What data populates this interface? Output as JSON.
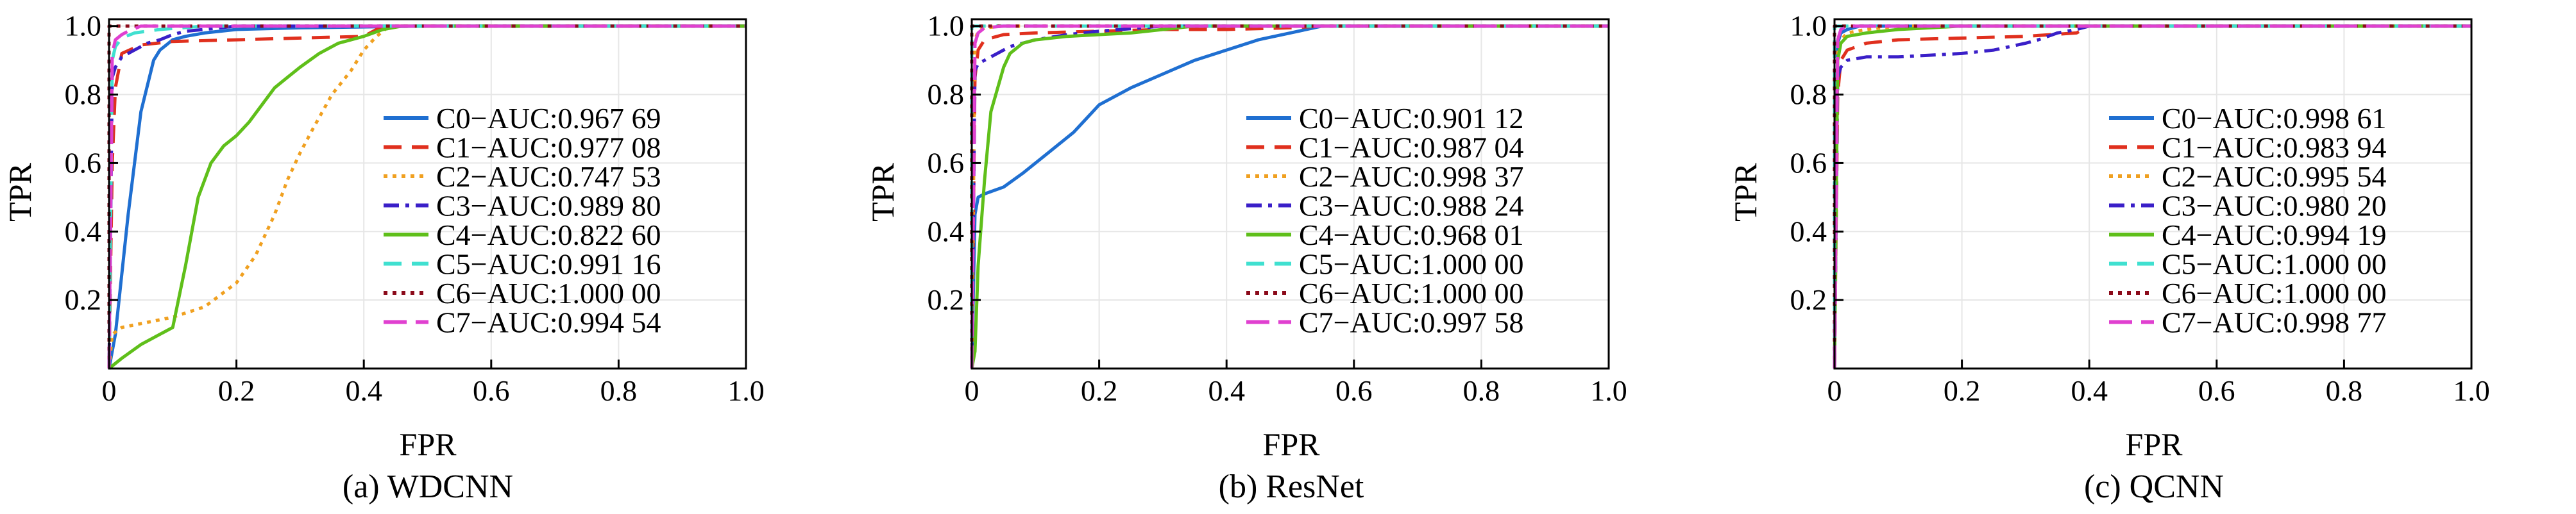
{
  "panels": [
    {
      "caption": "(a) WDCNN",
      "chart_data": {
        "type": "line",
        "xlabel": "FPR",
        "ylabel": "TPR",
        "xlim": [
          0,
          1.0
        ],
        "ylim": [
          0,
          1.02
        ],
        "xticks": [
          "0",
          "0.2",
          "0.4",
          "0.6",
          "0.8",
          "1.0"
        ],
        "yticks": [
          "0.2",
          "0.4",
          "0.6",
          "0.8",
          "1.0"
        ],
        "grid": true,
        "legend_position": "right",
        "series": [
          {
            "name": "C0−AUC:0.967 69",
            "color": "#1f6fd1",
            "dash": "solid",
            "x": [
              0,
              0.01,
              0.03,
              0.05,
              0.07,
              0.08,
              0.1,
              0.12,
              0.15,
              0.2,
              0.3,
              0.5,
              0.7,
              1.0
            ],
            "y": [
              0,
              0.1,
              0.45,
              0.75,
              0.9,
              0.93,
              0.96,
              0.97,
              0.98,
              0.99,
              0.995,
              1.0,
              1.0,
              1.0
            ]
          },
          {
            "name": "C1−AUC:0.977 08",
            "color": "#e0301e",
            "dash": "dashed",
            "x": [
              0,
              0.005,
              0.01,
              0.02,
              0.05,
              0.1,
              0.2,
              0.3,
              0.4,
              0.42,
              0.45,
              1.0
            ],
            "y": [
              0,
              0.6,
              0.82,
              0.92,
              0.945,
              0.955,
              0.96,
              0.965,
              0.97,
              0.99,
              1.0,
              1.0
            ]
          },
          {
            "name": "C2−AUC:0.747 53",
            "color": "#f0a020",
            "dash": "dotted",
            "x": [
              0,
              0.005,
              0.02,
              0.1,
              0.15,
              0.2,
              0.23,
              0.26,
              0.28,
              0.3,
              0.32,
              0.35,
              0.38,
              0.4,
              0.42,
              0.44,
              1.0
            ],
            "y": [
              0,
              0.1,
              0.12,
              0.15,
              0.18,
              0.25,
              0.33,
              0.45,
              0.55,
              0.63,
              0.7,
              0.8,
              0.87,
              0.93,
              0.97,
              1.0,
              1.0
            ]
          },
          {
            "name": "C3−AUC:0.989 80",
            "color": "#3a1fc8",
            "dash": "dashdot",
            "x": [
              0,
              0.005,
              0.01,
              0.02,
              0.04,
              0.06,
              0.08,
              0.1,
              0.12,
              0.15,
              0.2,
              1.0
            ],
            "y": [
              0,
              0.85,
              0.88,
              0.91,
              0.93,
              0.95,
              0.96,
              0.975,
              0.985,
              0.99,
              1.0,
              1.0
            ]
          },
          {
            "name": "C4−AUC:0.822 60",
            "color": "#5fbf1a",
            "dash": "solid",
            "x": [
              0,
              0.02,
              0.05,
              0.08,
              0.1,
              0.12,
              0.14,
              0.16,
              0.18,
              0.2,
              0.22,
              0.24,
              0.26,
              0.28,
              0.3,
              0.33,
              0.36,
              0.4,
              0.43,
              0.46,
              1.0
            ],
            "y": [
              0,
              0.03,
              0.07,
              0.1,
              0.12,
              0.3,
              0.5,
              0.6,
              0.65,
              0.68,
              0.72,
              0.77,
              0.82,
              0.85,
              0.88,
              0.92,
              0.95,
              0.97,
              0.99,
              1.0,
              1.0
            ]
          },
          {
            "name": "C5−AUC:0.991 16",
            "color": "#40e0d0",
            "dash": "dashed",
            "x": [
              0,
              0.005,
              0.01,
              0.02,
              0.04,
              0.08,
              0.15,
              1.0
            ],
            "y": [
              0,
              0.9,
              0.94,
              0.965,
              0.98,
              0.99,
              1.0,
              1.0
            ]
          },
          {
            "name": "C6−AUC:1.000 00",
            "color": "#8b0a1a",
            "dash": "dotted",
            "x": [
              0,
              0,
              1.0
            ],
            "y": [
              0,
              1.0,
              1.0
            ]
          },
          {
            "name": "C7−AUC:0.994 54",
            "color": "#e040d0",
            "dash": "longdash",
            "x": [
              0,
              0.005,
              0.01,
              0.02,
              0.03,
              0.05,
              1.0
            ],
            "y": [
              0,
              0.92,
              0.96,
              0.975,
              0.985,
              1.0,
              1.0
            ]
          }
        ]
      }
    },
    {
      "caption": "(b) ResNet",
      "chart_data": {
        "type": "line",
        "xlabel": "FPR",
        "ylabel": "TPR",
        "xlim": [
          0,
          1.0
        ],
        "ylim": [
          0,
          1.02
        ],
        "xticks": [
          "0",
          "0.2",
          "0.4",
          "0.6",
          "0.8",
          "1.0"
        ],
        "yticks": [
          "0.2",
          "0.4",
          "0.6",
          "0.8",
          "1.0"
        ],
        "grid": true,
        "legend_position": "right",
        "series": [
          {
            "name": "C0−AUC:0.901 12",
            "color": "#1f6fd1",
            "dash": "solid",
            "x": [
              0,
              0.005,
              0.01,
              0.02,
              0.05,
              0.08,
              0.1,
              0.12,
              0.14,
              0.16,
              0.18,
              0.2,
              0.25,
              0.3,
              0.35,
              0.4,
              0.45,
              0.5,
              0.55,
              1.0
            ],
            "y": [
              0,
              0.45,
              0.5,
              0.51,
              0.53,
              0.57,
              0.6,
              0.63,
              0.66,
              0.69,
              0.73,
              0.77,
              0.82,
              0.86,
              0.9,
              0.93,
              0.96,
              0.98,
              1.0,
              1.0
            ]
          },
          {
            "name": "C1−AUC:0.987 04",
            "color": "#e0301e",
            "dash": "dashed",
            "x": [
              0,
              0.005,
              0.01,
              0.02,
              0.05,
              0.1,
              0.2,
              0.3,
              0.4,
              0.5,
              0.55,
              1.0
            ],
            "y": [
              0,
              0.85,
              0.93,
              0.96,
              0.975,
              0.98,
              0.985,
              0.99,
              0.99,
              0.995,
              1.0,
              1.0
            ]
          },
          {
            "name": "C2−AUC:0.998 37",
            "color": "#f0a020",
            "dash": "dotted",
            "x": [
              0,
              0.005,
              0.01,
              0.02,
              0.05,
              1.0
            ],
            "y": [
              0,
              0.96,
              0.985,
              0.995,
              1.0,
              1.0
            ]
          },
          {
            "name": "C3−AUC:0.988 24",
            "color": "#3a1fc8",
            "dash": "dashdot",
            "x": [
              0,
              0.005,
              0.01,
              0.02,
              0.04,
              0.06,
              0.1,
              0.15,
              0.2,
              0.3,
              1.0
            ],
            "y": [
              0,
              0.87,
              0.89,
              0.9,
              0.92,
              0.94,
              0.96,
              0.975,
              0.985,
              1.0,
              1.0
            ]
          },
          {
            "name": "C4−AUC:0.968 01",
            "color": "#5fbf1a",
            "dash": "solid",
            "x": [
              0,
              0.005,
              0.01,
              0.02,
              0.03,
              0.05,
              0.06,
              0.08,
              0.1,
              0.15,
              0.2,
              0.25,
              0.3,
              0.35,
              1.0
            ],
            "y": [
              0,
              0.05,
              0.3,
              0.55,
              0.75,
              0.88,
              0.92,
              0.95,
              0.96,
              0.97,
              0.975,
              0.98,
              0.99,
              1.0,
              1.0
            ]
          },
          {
            "name": "C5−AUC:1.000 00",
            "color": "#40e0d0",
            "dash": "dashed",
            "x": [
              0,
              0,
              1.0
            ],
            "y": [
              0,
              1.0,
              1.0
            ]
          },
          {
            "name": "C6−AUC:1.000 00",
            "color": "#8b0a1a",
            "dash": "dotted",
            "x": [
              0,
              0,
              1.0
            ],
            "y": [
              0,
              1.0,
              1.0
            ]
          },
          {
            "name": "C7−AUC:0.997 58",
            "color": "#e040d0",
            "dash": "longdash",
            "x": [
              0,
              0.005,
              0.01,
              0.02,
              0.05,
              1.0
            ],
            "y": [
              0,
              0.95,
              0.98,
              0.995,
              1.0,
              1.0
            ]
          }
        ]
      }
    },
    {
      "caption": "(c) QCNN",
      "chart_data": {
        "type": "line",
        "xlabel": "FPR",
        "ylabel": "TPR",
        "xlim": [
          0,
          1.0
        ],
        "ylim": [
          0,
          1.02
        ],
        "xticks": [
          "0",
          "0.2",
          "0.4",
          "0.6",
          "0.8",
          "1.0"
        ],
        "yticks": [
          "0.2",
          "0.4",
          "0.6",
          "0.8",
          "1.0"
        ],
        "grid": true,
        "legend_position": "right",
        "series": [
          {
            "name": "C0−AUC:0.998 61",
            "color": "#1f6fd1",
            "dash": "solid",
            "x": [
              0,
              0.005,
              0.01,
              0.02,
              0.04,
              1.0
            ],
            "y": [
              0,
              0.95,
              0.98,
              0.99,
              1.0,
              1.0
            ]
          },
          {
            "name": "C1−AUC:0.983 94",
            "color": "#e0301e",
            "dash": "dashed",
            "x": [
              0,
              0.005,
              0.01,
              0.02,
              0.05,
              0.1,
              0.2,
              0.3,
              0.38,
              0.4,
              1.0
            ],
            "y": [
              0,
              0.8,
              0.9,
              0.93,
              0.95,
              0.96,
              0.965,
              0.97,
              0.98,
              1.0,
              1.0
            ]
          },
          {
            "name": "C2−AUC:0.995 54",
            "color": "#f0a020",
            "dash": "dotted",
            "x": [
              0,
              0.005,
              0.01,
              0.02,
              0.05,
              0.1,
              1.0
            ],
            "y": [
              0,
              0.92,
              0.96,
              0.98,
              0.99,
              1.0,
              1.0
            ]
          },
          {
            "name": "C3−AUC:0.980 20",
            "color": "#3a1fc8",
            "dash": "dashdot",
            "x": [
              0,
              0.005,
              0.01,
              0.02,
              0.05,
              0.1,
              0.15,
              0.2,
              0.25,
              0.3,
              0.32,
              0.35,
              0.38,
              0.4,
              1.0
            ],
            "y": [
              0,
              0.85,
              0.88,
              0.9,
              0.91,
              0.91,
              0.915,
              0.92,
              0.93,
              0.95,
              0.96,
              0.98,
              0.99,
              1.0,
              1.0
            ]
          },
          {
            "name": "C4−AUC:0.994 19",
            "color": "#5fbf1a",
            "dash": "solid",
            "x": [
              0,
              0.005,
              0.01,
              0.02,
              0.05,
              0.1,
              0.2,
              1.0
            ],
            "y": [
              0,
              0.9,
              0.95,
              0.97,
              0.98,
              0.99,
              1.0,
              1.0
            ]
          },
          {
            "name": "C5−AUC:1.000 00",
            "color": "#40e0d0",
            "dash": "dashed",
            "x": [
              0,
              0,
              1.0
            ],
            "y": [
              0,
              1.0,
              1.0
            ]
          },
          {
            "name": "C6−AUC:1.000 00",
            "color": "#8b0a1a",
            "dash": "dotted",
            "x": [
              0,
              0,
              1.0
            ],
            "y": [
              0,
              1.0,
              1.0
            ]
          },
          {
            "name": "C7−AUC:0.998 77",
            "color": "#e040d0",
            "dash": "longdash",
            "x": [
              0,
              0.005,
              0.01,
              0.02,
              1.0
            ],
            "y": [
              0,
              0.96,
              0.99,
              1.0,
              1.0
            ]
          }
        ]
      }
    }
  ]
}
